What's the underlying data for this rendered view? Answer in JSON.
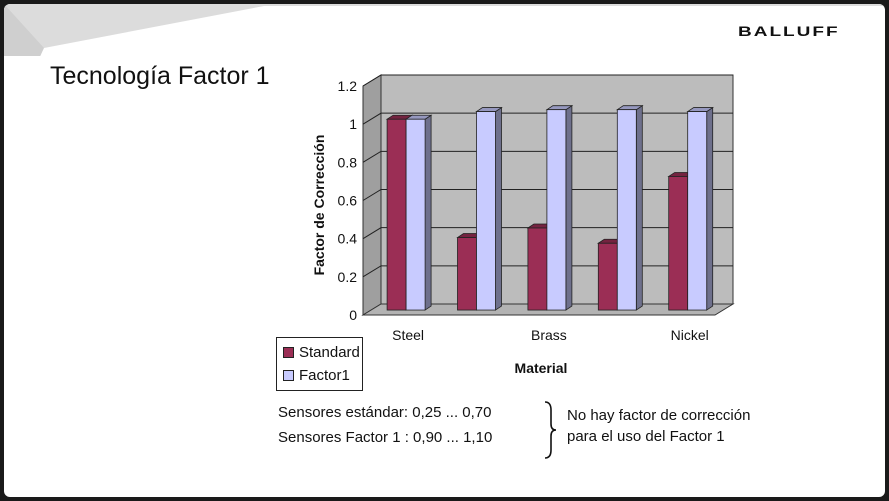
{
  "slide": {
    "title": "Tecnología Factor 1",
    "logo_text": "BALLUFF"
  },
  "notes": {
    "line1": "Sensores estándar: 0,25 ... 0,70",
    "line2": "Sensores Factor 1 : 0,90 ... 1,10",
    "right1": "No hay factor de corrección",
    "right2": "para el uso del Factor 1"
  },
  "colors": {
    "standard": "#9b2e55",
    "factor1": "#c8cbff",
    "wall": "#bcbcbc",
    "floor": "#b3b3b3"
  },
  "chart_data": {
    "type": "bar",
    "style": "3d-clustered-column",
    "categories": [
      "Steel",
      "",
      "Brass",
      "",
      "Nickel"
    ],
    "series": [
      {
        "name": "Standard",
        "values": [
          1.0,
          0.38,
          0.43,
          0.35,
          0.7
        ]
      },
      {
        "name": "Factor1",
        "values": [
          1.0,
          1.04,
          1.05,
          1.05,
          1.04
        ]
      }
    ],
    "xlabel": "Material",
    "ylabel": "Factor de Corrección",
    "ylim": [
      0,
      1.2
    ],
    "yticks": [
      "0",
      "0.2",
      "0.4",
      "0.6",
      "0.8",
      "1",
      "1.2"
    ],
    "grid": true,
    "legend": "bottom-left"
  }
}
